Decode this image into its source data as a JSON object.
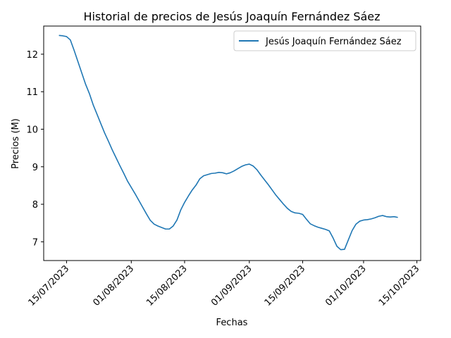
{
  "chart_data": {
    "type": "line",
    "title": "Historial de precios de Jesús Joaquín Fernández Sáez",
    "xlabel": "Fechas",
    "ylabel": "Precios (M)",
    "xlim": [
      "2023-07-09",
      "2023-10-16"
    ],
    "ylim": [
      6.5,
      12.75
    ],
    "x_ticks": [
      "2023-07-15",
      "2023-08-01",
      "2023-08-15",
      "2023-09-01",
      "2023-09-15",
      "2023-10-01",
      "2023-10-15"
    ],
    "x_tick_labels": [
      "15/07/2023",
      "01/08/2023",
      "15/08/2023",
      "01/09/2023",
      "15/09/2023",
      "01/10/2023",
      "15/10/2023"
    ],
    "y_ticks": [
      7,
      8,
      9,
      10,
      11,
      12
    ],
    "y_tick_labels": [
      "7",
      "8",
      "9",
      "10",
      "11",
      "12"
    ],
    "legend_position": "top-right",
    "grid": false,
    "series": [
      {
        "name": "Jesús Joaquín Fernández Sáez",
        "color": "#1f77b4",
        "x": [
          "2023-07-13",
          "2023-07-14",
          "2023-07-15",
          "2023-07-16",
          "2023-07-17",
          "2023-07-18",
          "2023-07-19",
          "2023-07-20",
          "2023-07-21",
          "2023-07-22",
          "2023-07-23",
          "2023-07-24",
          "2023-07-25",
          "2023-07-26",
          "2023-07-27",
          "2023-07-28",
          "2023-07-29",
          "2023-07-30",
          "2023-07-31",
          "2023-08-01",
          "2023-08-02",
          "2023-08-03",
          "2023-08-04",
          "2023-08-05",
          "2023-08-06",
          "2023-08-07",
          "2023-08-08",
          "2023-08-09",
          "2023-08-10",
          "2023-08-11",
          "2023-08-12",
          "2023-08-13",
          "2023-08-14",
          "2023-08-15",
          "2023-08-16",
          "2023-08-17",
          "2023-08-18",
          "2023-08-19",
          "2023-08-20",
          "2023-08-21",
          "2023-08-22",
          "2023-08-23",
          "2023-08-24",
          "2023-08-25",
          "2023-08-26",
          "2023-08-27",
          "2023-08-28",
          "2023-08-29",
          "2023-08-30",
          "2023-08-31",
          "2023-09-01",
          "2023-09-02",
          "2023-09-03",
          "2023-09-04",
          "2023-09-05",
          "2023-09-06",
          "2023-09-07",
          "2023-09-08",
          "2023-09-09",
          "2023-09-10",
          "2023-09-11",
          "2023-09-12",
          "2023-09-13",
          "2023-09-14",
          "2023-09-15",
          "2023-09-16",
          "2023-09-17",
          "2023-09-18",
          "2023-09-19",
          "2023-09-20",
          "2023-09-21",
          "2023-09-22",
          "2023-09-23",
          "2023-09-24",
          "2023-09-25",
          "2023-09-26",
          "2023-09-27",
          "2023-09-28",
          "2023-09-29",
          "2023-09-30",
          "2023-10-01",
          "2023-10-02",
          "2023-10-03",
          "2023-10-04",
          "2023-10-05",
          "2023-10-06",
          "2023-10-07",
          "2023-10-08",
          "2023-10-09",
          "2023-10-10"
        ],
        "y": [
          12.5,
          12.49,
          12.47,
          12.38,
          12.1,
          11.8,
          11.5,
          11.2,
          10.95,
          10.65,
          10.4,
          10.15,
          9.9,
          9.68,
          9.45,
          9.24,
          9.03,
          8.83,
          8.62,
          8.45,
          8.28,
          8.1,
          7.92,
          7.74,
          7.57,
          7.47,
          7.42,
          7.38,
          7.34,
          7.34,
          7.42,
          7.58,
          7.85,
          8.05,
          8.22,
          8.38,
          8.51,
          8.68,
          8.76,
          8.79,
          8.82,
          8.83,
          8.85,
          8.84,
          8.81,
          8.84,
          8.89,
          8.95,
          9.01,
          9.05,
          9.07,
          9.02,
          8.92,
          8.78,
          8.65,
          8.52,
          8.38,
          8.24,
          8.12,
          8.0,
          7.89,
          7.81,
          7.77,
          7.76,
          7.73,
          7.6,
          7.48,
          7.43,
          7.39,
          7.36,
          7.33,
          7.29,
          7.1,
          6.88,
          6.79,
          6.8,
          7.05,
          7.3,
          7.47,
          7.55,
          7.58,
          7.59,
          7.61,
          7.64,
          7.68,
          7.7,
          7.67,
          7.66,
          7.67,
          7.65
        ]
      }
    ]
  }
}
